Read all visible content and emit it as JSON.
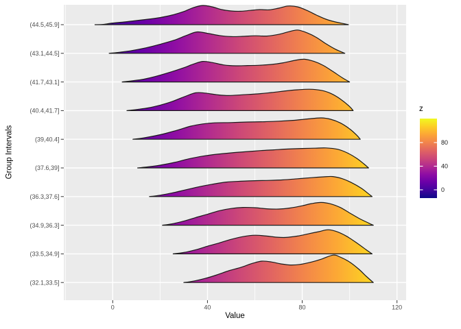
{
  "figure": {
    "x_axis": {
      "title": "Value",
      "tick_labels": [
        "0",
        "40",
        "80",
        "120"
      ]
    },
    "y_axis": {
      "title": "Group Intervals"
    },
    "legend": {
      "title": "z",
      "tick_labels": [
        "80",
        "40",
        "0"
      ]
    }
  },
  "chart_data": {
    "type": "ridgeline",
    "title": "",
    "xlabel": "Value",
    "ylabel": "Group Intervals",
    "x_ticks": [
      0,
      40,
      80,
      120
    ],
    "x_minor_ticks": [
      -20,
      20,
      60,
      100
    ],
    "x_panel_range": [
      -20.6,
      123.9
    ],
    "grid": true,
    "fill_mapping": "gradient fill where z = x (plasma colormap)",
    "z_range": [
      -14,
      120.6
    ],
    "legend": {
      "title": "z",
      "ticks": [
        80,
        40,
        0
      ],
      "position": "right"
    },
    "height_unit": "relative density (1.0 = tallest ridge)",
    "groups": [
      {
        "label": "(44.5,45.9]",
        "density": [
          [
            -7.5,
            0
          ],
          [
            -4,
            0.01
          ],
          [
            0,
            0.06
          ],
          [
            5,
            0.1
          ],
          [
            10,
            0.15
          ],
          [
            15,
            0.2
          ],
          [
            20,
            0.26
          ],
          [
            25,
            0.35
          ],
          [
            30,
            0.48
          ],
          [
            34,
            0.62
          ],
          [
            38,
            0.7
          ],
          [
            42,
            0.65
          ],
          [
            46,
            0.55
          ],
          [
            50,
            0.5
          ],
          [
            54,
            0.49
          ],
          [
            58,
            0.52
          ],
          [
            62,
            0.55
          ],
          [
            66,
            0.54
          ],
          [
            70,
            0.6
          ],
          [
            74,
            0.68
          ],
          [
            78,
            0.65
          ],
          [
            82,
            0.52
          ],
          [
            86,
            0.35
          ],
          [
            90,
            0.2
          ],
          [
            94,
            0.1
          ],
          [
            98,
            0.03
          ],
          [
            99.5,
            0
          ]
        ]
      },
      {
        "label": "(43.1,44.5]",
        "density": [
          [
            -1.5,
            0
          ],
          [
            3,
            0.04
          ],
          [
            8,
            0.1
          ],
          [
            14,
            0.2
          ],
          [
            20,
            0.33
          ],
          [
            26,
            0.48
          ],
          [
            31,
            0.65
          ],
          [
            35.5,
            0.78
          ],
          [
            40,
            0.73
          ],
          [
            45,
            0.65
          ],
          [
            50,
            0.61
          ],
          [
            55,
            0.62
          ],
          [
            60,
            0.64
          ],
          [
            65,
            0.63
          ],
          [
            70,
            0.69
          ],
          [
            74,
            0.78
          ],
          [
            78,
            0.85
          ],
          [
            82,
            0.75
          ],
          [
            86,
            0.58
          ],
          [
            90,
            0.35
          ],
          [
            94,
            0.15
          ],
          [
            98,
            0
          ]
        ]
      },
      {
        "label": "(41.7,43.1]",
        "density": [
          [
            4,
            0
          ],
          [
            8,
            0.04
          ],
          [
            13,
            0.1
          ],
          [
            18,
            0.2
          ],
          [
            24,
            0.35
          ],
          [
            30,
            0.52
          ],
          [
            34,
            0.65
          ],
          [
            38,
            0.75
          ],
          [
            42,
            0.71
          ],
          [
            47,
            0.62
          ],
          [
            52,
            0.59
          ],
          [
            57,
            0.6
          ],
          [
            62,
            0.61
          ],
          [
            67,
            0.64
          ],
          [
            72,
            0.7
          ],
          [
            77,
            0.79
          ],
          [
            81,
            0.83
          ],
          [
            85,
            0.75
          ],
          [
            89,
            0.6
          ],
          [
            93,
            0.38
          ],
          [
            97,
            0.15
          ],
          [
            100,
            0
          ]
        ]
      },
      {
        "label": "(40.4,41.7]",
        "density": [
          [
            6,
            0
          ],
          [
            10,
            0.04
          ],
          [
            15,
            0.1
          ],
          [
            20,
            0.2
          ],
          [
            25,
            0.33
          ],
          [
            30,
            0.5
          ],
          [
            35,
            0.65
          ],
          [
            39,
            0.64
          ],
          [
            44,
            0.58
          ],
          [
            49,
            0.55
          ],
          [
            55,
            0.58
          ],
          [
            61,
            0.61
          ],
          [
            67,
            0.66
          ],
          [
            73,
            0.72
          ],
          [
            78,
            0.76
          ],
          [
            83,
            0.78
          ],
          [
            88,
            0.74
          ],
          [
            92,
            0.63
          ],
          [
            96,
            0.43
          ],
          [
            100,
            0.15
          ],
          [
            101.5,
            0
          ]
        ]
      },
      {
        "label": "(39,40.4]",
        "density": [
          [
            8.5,
            0
          ],
          [
            13,
            0.05
          ],
          [
            18,
            0.13
          ],
          [
            23,
            0.23
          ],
          [
            28,
            0.35
          ],
          [
            33,
            0.48
          ],
          [
            38,
            0.56
          ],
          [
            43,
            0.6
          ],
          [
            50,
            0.61
          ],
          [
            57,
            0.63
          ],
          [
            64,
            0.64
          ],
          [
            70,
            0.66
          ],
          [
            76,
            0.69
          ],
          [
            82,
            0.74
          ],
          [
            88,
            0.78
          ],
          [
            92,
            0.73
          ],
          [
            96,
            0.6
          ],
          [
            100,
            0.38
          ],
          [
            103,
            0.15
          ],
          [
            104.5,
            0
          ]
        ]
      },
      {
        "label": "(37.6,39]",
        "density": [
          [
            10.5,
            0
          ],
          [
            15,
            0.04
          ],
          [
            20,
            0.1
          ],
          [
            26,
            0.2
          ],
          [
            32,
            0.33
          ],
          [
            38,
            0.43
          ],
          [
            44,
            0.5
          ],
          [
            50,
            0.55
          ],
          [
            56,
            0.59
          ],
          [
            62,
            0.63
          ],
          [
            68,
            0.66
          ],
          [
            74,
            0.69
          ],
          [
            80,
            0.71
          ],
          [
            85,
            0.72
          ],
          [
            90,
            0.73
          ],
          [
            95,
            0.68
          ],
          [
            99,
            0.55
          ],
          [
            103,
            0.35
          ],
          [
            106,
            0.15
          ],
          [
            108,
            0
          ]
        ]
      },
      {
        "label": "(36.3,37.6]",
        "density": [
          [
            15.5,
            0
          ],
          [
            20,
            0.05
          ],
          [
            25,
            0.13
          ],
          [
            30,
            0.23
          ],
          [
            36,
            0.35
          ],
          [
            42,
            0.45
          ],
          [
            48,
            0.53
          ],
          [
            54,
            0.56
          ],
          [
            60,
            0.58
          ],
          [
            66,
            0.59
          ],
          [
            72,
            0.61
          ],
          [
            78,
            0.65
          ],
          [
            84,
            0.69
          ],
          [
            89,
            0.72
          ],
          [
            93,
            0.73
          ],
          [
            97,
            0.65
          ],
          [
            101,
            0.5
          ],
          [
            105,
            0.3
          ],
          [
            108,
            0.1
          ],
          [
            109.5,
            0
          ]
        ]
      },
      {
        "label": "(34.9,36.3]",
        "density": [
          [
            21,
            0
          ],
          [
            25,
            0.05
          ],
          [
            30,
            0.15
          ],
          [
            35,
            0.28
          ],
          [
            40,
            0.4
          ],
          [
            45,
            0.53
          ],
          [
            50,
            0.61
          ],
          [
            55,
            0.65
          ],
          [
            60,
            0.64
          ],
          [
            65,
            0.6
          ],
          [
            70,
            0.59
          ],
          [
            75,
            0.63
          ],
          [
            80,
            0.71
          ],
          [
            84,
            0.79
          ],
          [
            88,
            0.83
          ],
          [
            92,
            0.78
          ],
          [
            96,
            0.65
          ],
          [
            100,
            0.45
          ],
          [
            104,
            0.25
          ],
          [
            108,
            0.08
          ],
          [
            110,
            0
          ]
        ]
      },
      {
        "label": "(33.5,34.9]",
        "density": [
          [
            25.5,
            0
          ],
          [
            30,
            0.05
          ],
          [
            35,
            0.15
          ],
          [
            40,
            0.28
          ],
          [
            45,
            0.4
          ],
          [
            50,
            0.53
          ],
          [
            55,
            0.63
          ],
          [
            60,
            0.68
          ],
          [
            65,
            0.65
          ],
          [
            69,
            0.61
          ],
          [
            73,
            0.6
          ],
          [
            78,
            0.65
          ],
          [
            83,
            0.74
          ],
          [
            87,
            0.81
          ],
          [
            91,
            0.88
          ],
          [
            95,
            0.8
          ],
          [
            99,
            0.63
          ],
          [
            103,
            0.4
          ],
          [
            107,
            0.15
          ],
          [
            109.5,
            0
          ]
        ]
      },
      {
        "label": "(32.1,33.5]",
        "density": [
          [
            30,
            0
          ],
          [
            34,
            0.05
          ],
          [
            39,
            0.15
          ],
          [
            44,
            0.28
          ],
          [
            49,
            0.43
          ],
          [
            54,
            0.55
          ],
          [
            59,
            0.7
          ],
          [
            63,
            0.78
          ],
          [
            67,
            0.75
          ],
          [
            71,
            0.68
          ],
          [
            75,
            0.64
          ],
          [
            79,
            0.66
          ],
          [
            84,
            0.75
          ],
          [
            88,
            0.85
          ],
          [
            93,
            1.0
          ],
          [
            96,
            0.93
          ],
          [
            100,
            0.75
          ],
          [
            104,
            0.48
          ],
          [
            107,
            0.23
          ],
          [
            110,
            0
          ]
        ]
      }
    ]
  },
  "colors": {
    "background": "#ffffff",
    "panel_background": "#ebebeb",
    "gridline": "#ffffff",
    "ridge_stroke": "#1a1a1a",
    "axis_text": "#4d4d4d",
    "tick_mark": "#333333",
    "legend_text": "#1a1a1a",
    "plasma": [
      "#0d0887",
      "#41049d",
      "#6a00a8",
      "#8f0da4",
      "#b12a90",
      "#cc4778",
      "#e16462",
      "#f2844b",
      "#fca636",
      "#fcce25",
      "#f0f921"
    ]
  }
}
